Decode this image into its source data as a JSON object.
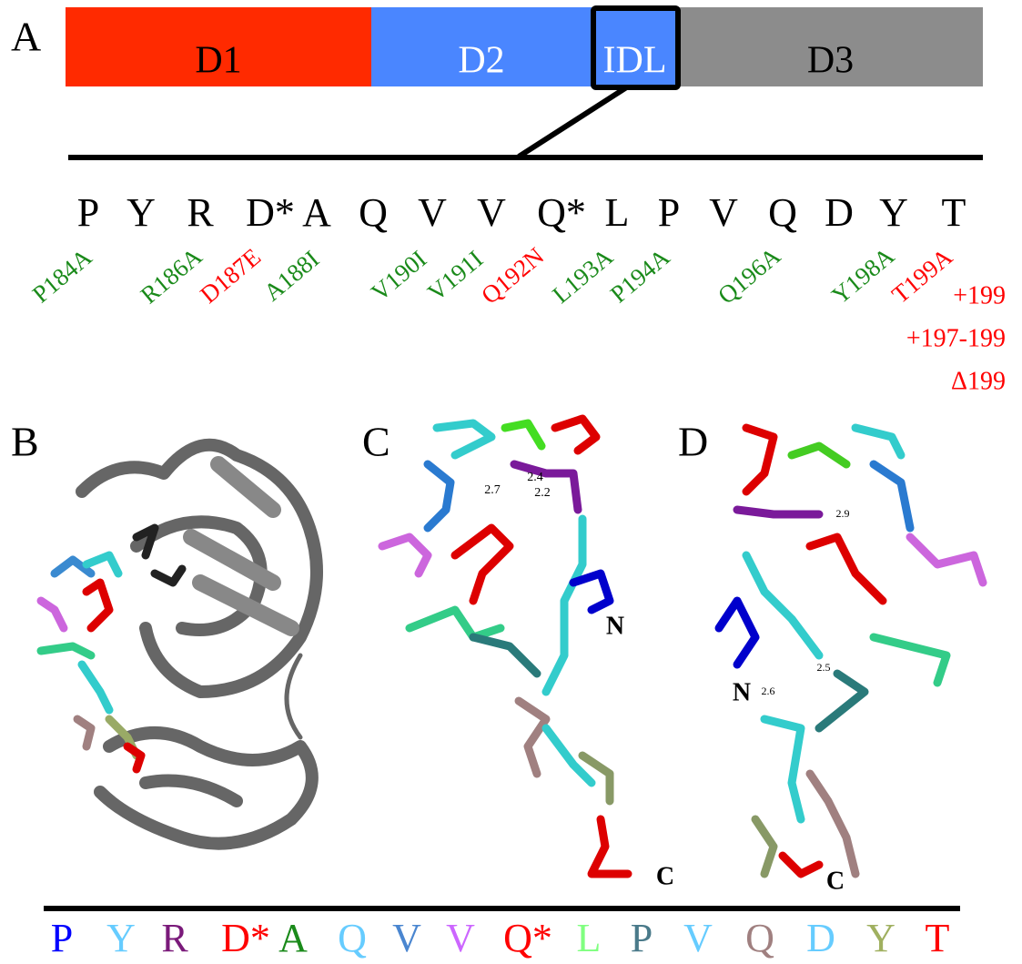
{
  "panels": {
    "a": "A",
    "b": "B",
    "c": "C",
    "d": "D"
  },
  "domains": [
    {
      "label": "D1",
      "color": "#ff2a00",
      "text_color": "#000000"
    },
    {
      "label": "D2",
      "color": "#4a86ff",
      "text_color": "#ffffff"
    },
    {
      "label": "IDL",
      "color": "#4a86ff",
      "text_color": "#ffffff"
    },
    {
      "label": "D3",
      "color": "#8c8c8c",
      "text_color": "#000000"
    }
  ],
  "sequence": [
    "P",
    "Y",
    "R",
    "D*",
    "A",
    "Q",
    "V",
    "V",
    "Q*",
    "L",
    "P",
    "V",
    "Q",
    "D",
    "Y",
    "T"
  ],
  "mutations": [
    {
      "label": "P184A",
      "color": "#1a8a1a"
    },
    {
      "label": "R186A",
      "color": "#1a8a1a"
    },
    {
      "label": "D187E",
      "color": "#ff0000"
    },
    {
      "label": "A188I",
      "color": "#1a8a1a"
    },
    {
      "label": "V190I",
      "color": "#1a8a1a"
    },
    {
      "label": "V191I",
      "color": "#1a8a1a"
    },
    {
      "label": "Q192N",
      "color": "#ff0000"
    },
    {
      "label": "L193A",
      "color": "#1a8a1a"
    },
    {
      "label": "P194A",
      "color": "#1a8a1a"
    },
    {
      "label": "Q196A",
      "color": "#1a8a1a"
    },
    {
      "label": "Y198A",
      "color": "#1a8a1a"
    },
    {
      "label": "T199A",
      "color": "#ff0000"
    }
  ],
  "extra_mutations": [
    "+199",
    "+197-199",
    "Δ199"
  ],
  "extra_color": "#ff0000",
  "panel_c": {
    "distances": [
      "2.7",
      "2.4",
      "2.2"
    ],
    "n_label": "N",
    "c_label": "C"
  },
  "panel_d": {
    "distances": [
      "2.9",
      "2.5",
      "2.6"
    ],
    "n_label": "N",
    "c_label": "C"
  },
  "bottom_sequence": [
    {
      "letter": "P",
      "color": "#0000ff"
    },
    {
      "letter": "Y",
      "color": "#66ccff"
    },
    {
      "letter": "R",
      "color": "#7a1a7a"
    },
    {
      "letter": "D*",
      "color": "#ff0000"
    },
    {
      "letter": "A",
      "color": "#1a8a1a"
    },
    {
      "letter": "Q",
      "color": "#66ccff"
    },
    {
      "letter": "V",
      "color": "#4a86d0"
    },
    {
      "letter": "V",
      "color": "#cc66ff"
    },
    {
      "letter": "Q*",
      "color": "#ff0000"
    },
    {
      "letter": "L",
      "color": "#80ff80"
    },
    {
      "letter": "P",
      "color": "#4a7a8a"
    },
    {
      "letter": "V",
      "color": "#66ccff"
    },
    {
      "letter": "Q",
      "color": "#a08080"
    },
    {
      "letter": "D",
      "color": "#66ccff"
    },
    {
      "letter": "Y",
      "color": "#a0b060"
    },
    {
      "letter": "T",
      "color": "#ff0000"
    }
  ]
}
